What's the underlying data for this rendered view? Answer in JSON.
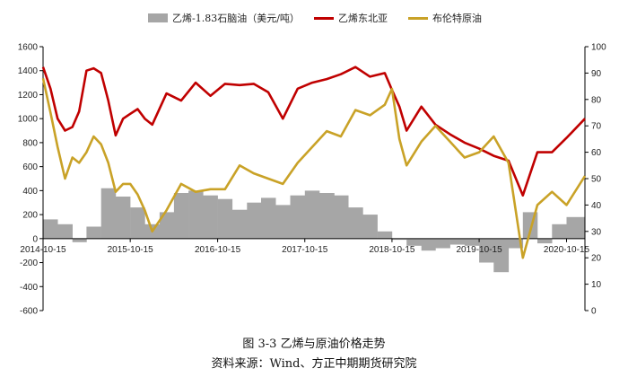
{
  "chart_data": {
    "type": "line",
    "legend": {
      "placement": "top",
      "entries": [
        "乙烯-1.83石脑油（美元/吨）",
        "乙烯东北亚",
        "布伦特原油"
      ]
    },
    "x_ticks": [
      "2014-10-15",
      "2015-10-15",
      "2016-10-15",
      "2017-10-15",
      "2018-10-15",
      "2019-10-15",
      "2020-10-15"
    ],
    "x_range": [
      "2014-10-15",
      "2020-12-31"
    ],
    "y_left": {
      "ylim": [
        -600,
        1600
      ],
      "ticks": [
        "-600",
        "-400",
        "-200",
        "0",
        "200",
        "400",
        "600",
        "800",
        "1000",
        "1200",
        "1400",
        "1600"
      ]
    },
    "y_right": {
      "ylim": [
        0,
        100
      ],
      "ticks": [
        "0",
        "10",
        "20",
        "30",
        "40",
        "50",
        "60",
        "70",
        "80",
        "90",
        "100"
      ]
    },
    "colors": {
      "spread": "#a6a6a6",
      "ethylene": "#c00000",
      "brent": "#c9a227"
    },
    "grid": false,
    "series": [
      {
        "name": "乙烯-1.83石脑油（美元/吨）",
        "type": "area",
        "axis": "left",
        "x": [
          "2014-10-15",
          "2014-12-15",
          "2015-02-15",
          "2015-04-15",
          "2015-06-15",
          "2015-08-15",
          "2015-10-15",
          "2015-12-15",
          "2016-02-15",
          "2016-04-15",
          "2016-06-15",
          "2016-08-15",
          "2016-10-15",
          "2016-12-15",
          "2017-02-15",
          "2017-04-15",
          "2017-06-15",
          "2017-08-15",
          "2017-10-15",
          "2017-12-15",
          "2018-02-15",
          "2018-04-15",
          "2018-06-15",
          "2018-08-15",
          "2018-10-15",
          "2018-12-15",
          "2019-02-15",
          "2019-04-15",
          "2019-06-15",
          "2019-08-15",
          "2019-10-15",
          "2019-12-15",
          "2020-02-15",
          "2020-04-15",
          "2020-06-15",
          "2020-08-15",
          "2020-10-15",
          "2020-12-31"
        ],
        "values": [
          160,
          120,
          -30,
          100,
          420,
          350,
          260,
          120,
          220,
          380,
          400,
          360,
          330,
          240,
          300,
          340,
          280,
          360,
          400,
          380,
          360,
          260,
          200,
          60,
          -10,
          -60,
          -100,
          -80,
          -50,
          -60,
          -200,
          -280,
          -80,
          220,
          -40,
          120,
          180,
          140
        ]
      },
      {
        "name": "乙烯东北亚",
        "type": "line",
        "axis": "left",
        "x": [
          "2014-10-15",
          "2014-11-15",
          "2014-12-15",
          "2015-01-15",
          "2015-02-15",
          "2015-03-15",
          "2015-04-15",
          "2015-05-15",
          "2015-06-15",
          "2015-07-15",
          "2015-08-15",
          "2015-09-15",
          "2015-10-15",
          "2015-11-15",
          "2015-12-15",
          "2016-01-15",
          "2016-03-15",
          "2016-05-15",
          "2016-07-15",
          "2016-09-15",
          "2016-11-15",
          "2017-01-15",
          "2017-03-15",
          "2017-05-15",
          "2017-07-15",
          "2017-09-15",
          "2017-11-15",
          "2018-01-15",
          "2018-03-15",
          "2018-05-15",
          "2018-07-15",
          "2018-09-15",
          "2018-10-15",
          "2018-11-15",
          "2018-12-15",
          "2019-02-15",
          "2019-04-15",
          "2019-06-15",
          "2019-08-15",
          "2019-10-15",
          "2019-12-15",
          "2020-02-15",
          "2020-04-15",
          "2020-06-15",
          "2020-08-15",
          "2020-10-15",
          "2020-12-31"
        ],
        "values": [
          1430,
          1250,
          1000,
          900,
          930,
          1060,
          1400,
          1420,
          1380,
          1150,
          860,
          1000,
          1040,
          1080,
          1000,
          950,
          1210,
          1150,
          1300,
          1190,
          1290,
          1280,
          1290,
          1220,
          1000,
          1250,
          1300,
          1330,
          1370,
          1430,
          1350,
          1380,
          1240,
          1100,
          900,
          1100,
          950,
          870,
          800,
          750,
          690,
          650,
          360,
          720,
          720,
          840,
          1000
        ]
      },
      {
        "name": "布伦特原油",
        "type": "line",
        "axis": "right",
        "x": [
          "2014-10-15",
          "2014-11-15",
          "2014-12-15",
          "2015-01-15",
          "2015-02-15",
          "2015-03-15",
          "2015-04-15",
          "2015-05-15",
          "2015-06-15",
          "2015-07-15",
          "2015-08-15",
          "2015-09-15",
          "2015-10-15",
          "2015-11-15",
          "2015-12-15",
          "2016-01-15",
          "2016-03-15",
          "2016-05-15",
          "2016-07-15",
          "2016-09-15",
          "2016-11-15",
          "2017-01-15",
          "2017-03-15",
          "2017-05-15",
          "2017-07-15",
          "2017-09-15",
          "2017-11-15",
          "2018-01-15",
          "2018-03-15",
          "2018-05-15",
          "2018-07-15",
          "2018-09-15",
          "2018-10-15",
          "2018-11-15",
          "2018-12-15",
          "2019-02-15",
          "2019-04-15",
          "2019-06-15",
          "2019-08-15",
          "2019-10-15",
          "2019-12-15",
          "2020-02-15",
          "2020-04-15",
          "2020-06-15",
          "2020-08-15",
          "2020-10-15",
          "2020-12-31"
        ],
        "values": [
          88,
          75,
          62,
          50,
          58,
          56,
          60,
          66,
          63,
          56,
          45,
          48,
          48,
          44,
          38,
          30,
          38,
          48,
          45,
          46,
          46,
          55,
          52,
          50,
          48,
          56,
          62,
          68,
          66,
          76,
          74,
          78,
          84,
          65,
          55,
          64,
          70,
          64,
          58,
          60,
          66,
          56,
          20,
          40,
          45,
          40,
          51
        ]
      }
    ]
  },
  "caption": {
    "figure_title": "图 3-3  乙烯与原油价格走势",
    "source": "资料来源：Wind、方正中期期货研究院"
  }
}
